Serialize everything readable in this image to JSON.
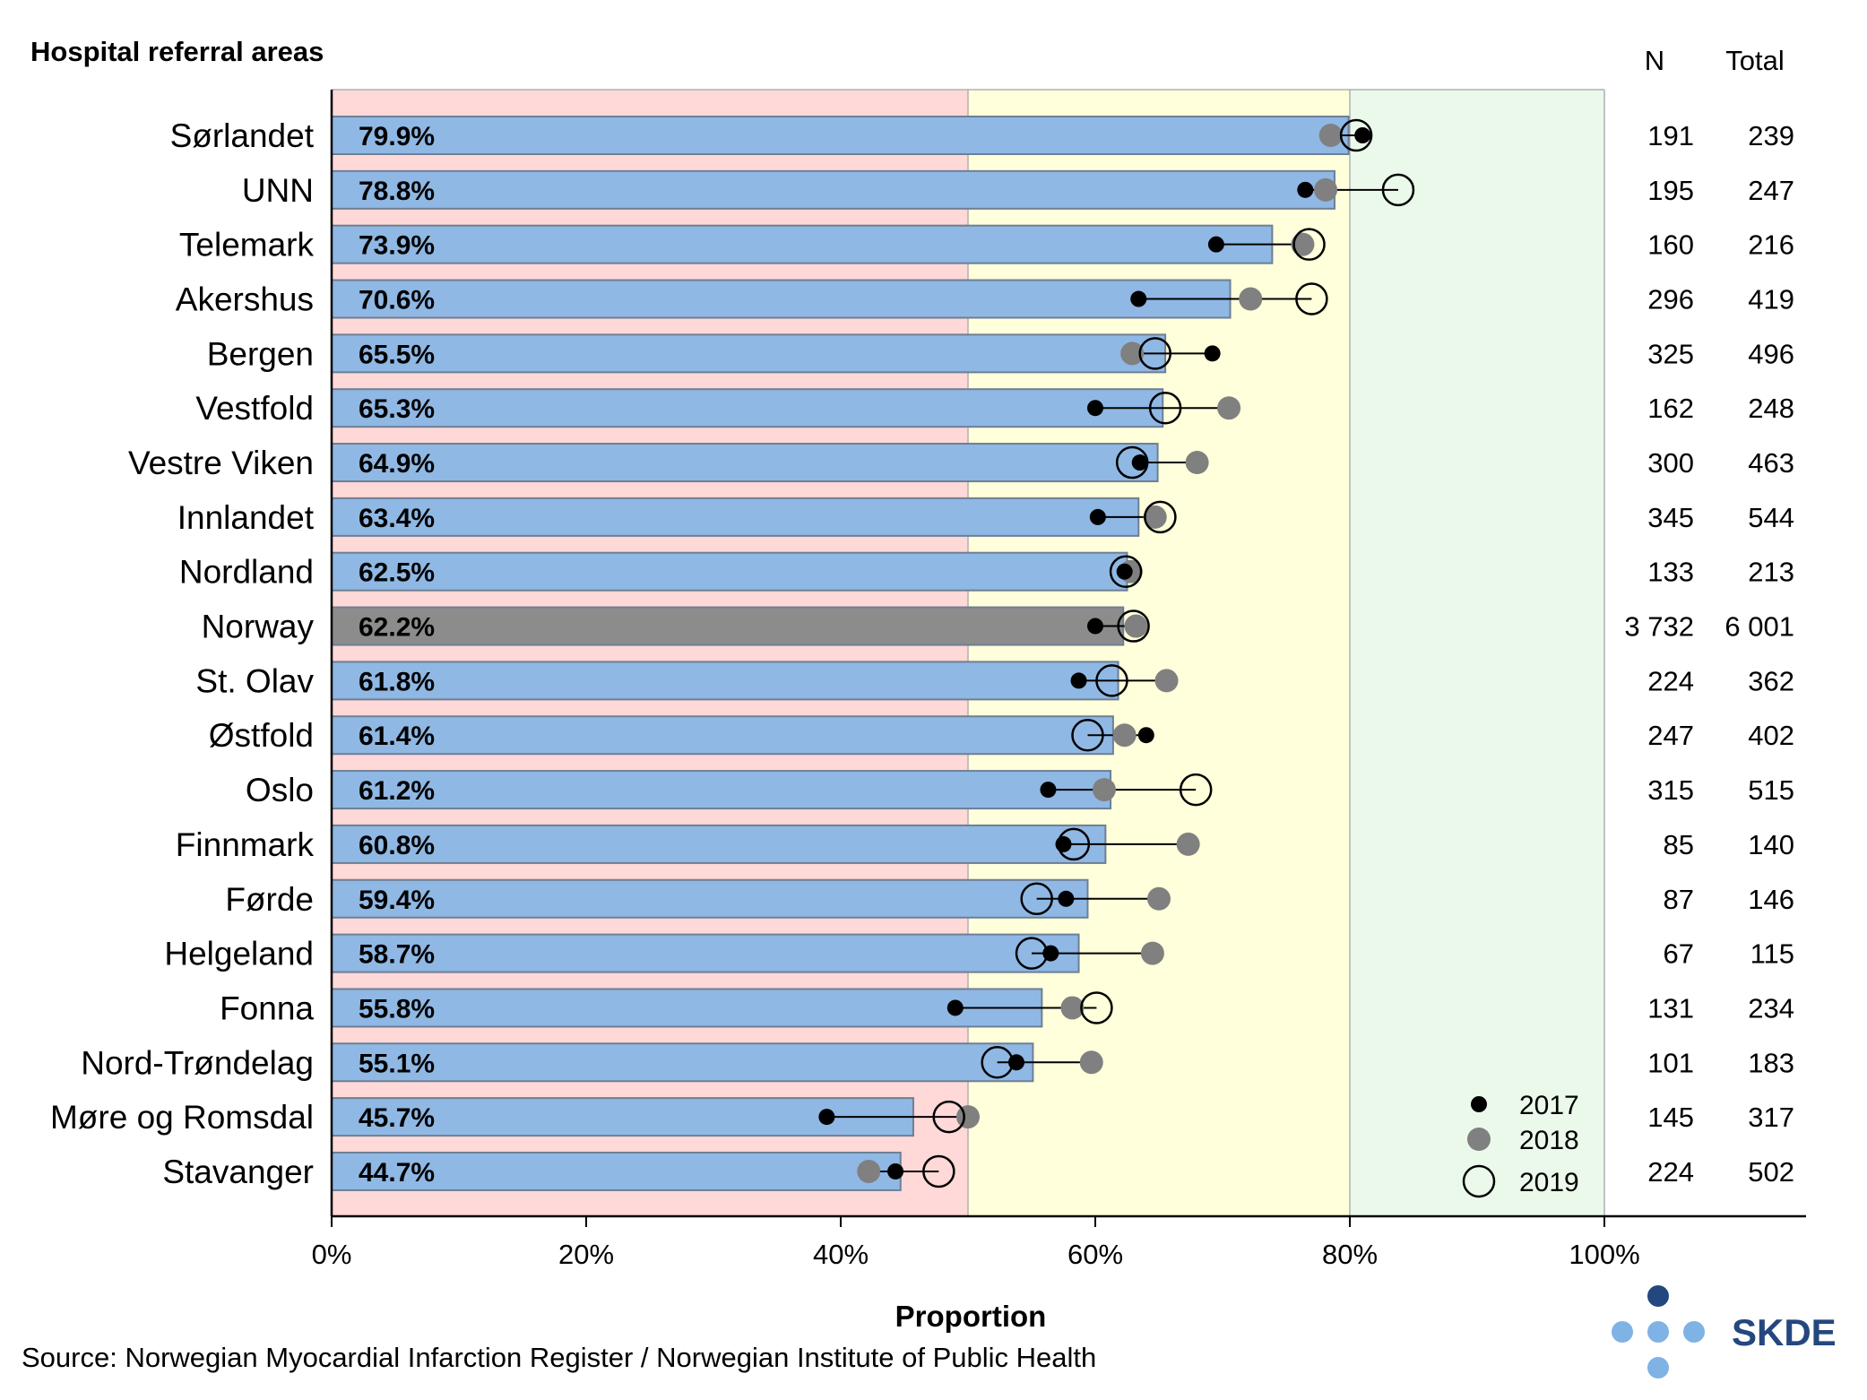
{
  "chart_data": {
    "type": "bar",
    "title": "Hospital referral areas",
    "xlabel": "Proportion",
    "xlim": [
      0,
      100
    ],
    "xticks": [
      "0%",
      "20%",
      "40%",
      "60%",
      "80%",
      "100%"
    ],
    "zones": [
      {
        "from": 0,
        "to": 50,
        "color": "#ffd8d8"
      },
      {
        "from": 50,
        "to": 80,
        "color": "#ffffdb"
      },
      {
        "from": 80,
        "to": 100,
        "color": "#ebf9eb"
      }
    ],
    "columns": {
      "n": "N",
      "total": "Total"
    },
    "categories": [
      "Sørlandet",
      "UNN",
      "Telemark",
      "Akershus",
      "Bergen",
      "Vestfold",
      "Vestre Viken",
      "Innlandet",
      "Nordland",
      "Norway",
      "St. Olav",
      "Østfold",
      "Oslo",
      "Finnmark",
      "Førde",
      "Helgeland",
      "Fonna",
      "Nord-Trøndelag",
      "Møre og Romsdal",
      "Stavanger"
    ],
    "values": [
      79.9,
      78.8,
      73.9,
      70.6,
      65.5,
      65.3,
      64.9,
      63.4,
      62.5,
      62.2,
      61.8,
      61.4,
      61.2,
      60.8,
      59.4,
      58.7,
      55.8,
      55.1,
      45.7,
      44.7
    ],
    "labels": [
      "79.9%",
      "78.8%",
      "73.9%",
      "70.6%",
      "65.5%",
      "65.3%",
      "64.9%",
      "63.4%",
      "62.5%",
      "62.2%",
      "61.8%",
      "61.4%",
      "61.2%",
      "60.8%",
      "59.4%",
      "58.7%",
      "55.8%",
      "55.1%",
      "45.7%",
      "44.7%"
    ],
    "highlight": "Norway",
    "n": [
      "191",
      "195",
      "160",
      "296",
      "325",
      "162",
      "300",
      "345",
      "133",
      "3 732",
      "224",
      "247",
      "315",
      "85",
      "87",
      "67",
      "131",
      "101",
      "145",
      "224"
    ],
    "total": [
      "239",
      "247",
      "216",
      "419",
      "496",
      "248",
      "463",
      "544",
      "213",
      "6 001",
      "362",
      "402",
      "515",
      "140",
      "146",
      "115",
      "234",
      "183",
      "317",
      "502"
    ],
    "series": [
      {
        "name": "2017",
        "values": [
          81.0,
          76.5,
          69.5,
          63.4,
          69.2,
          60.0,
          63.5,
          60.2,
          62.3,
          60.0,
          58.7,
          64.0,
          56.3,
          57.5,
          57.7,
          56.5,
          49.0,
          53.8,
          38.9,
          44.3
        ]
      },
      {
        "name": "2018",
        "values": [
          78.5,
          78.1,
          76.3,
          72.2,
          62.9,
          70.5,
          68.0,
          64.7,
          62.8,
          63.2,
          65.6,
          62.3,
          60.7,
          67.3,
          65.0,
          64.5,
          58.2,
          59.7,
          50.0,
          42.2
        ]
      },
      {
        "name": "2019",
        "values": [
          80.5,
          83.8,
          76.8,
          77.0,
          64.7,
          65.5,
          62.9,
          65.1,
          62.4,
          63.0,
          61.3,
          59.4,
          67.9,
          58.3,
          55.4,
          55.0,
          60.1,
          52.3,
          48.5,
          47.7
        ]
      }
    ],
    "colors": {
      "bar": "#8fb8e4",
      "bar_highlight": "#8c8c8c",
      "y2017": "#000000",
      "y2018": "#808080"
    }
  },
  "source": "Source: Norwegian Myocardial Infarction Register / Norwegian Institute of Public Health",
  "logo": {
    "text": "SKDE",
    "colors": {
      "dark": "#24477f",
      "light": "#7fb2e5"
    }
  }
}
